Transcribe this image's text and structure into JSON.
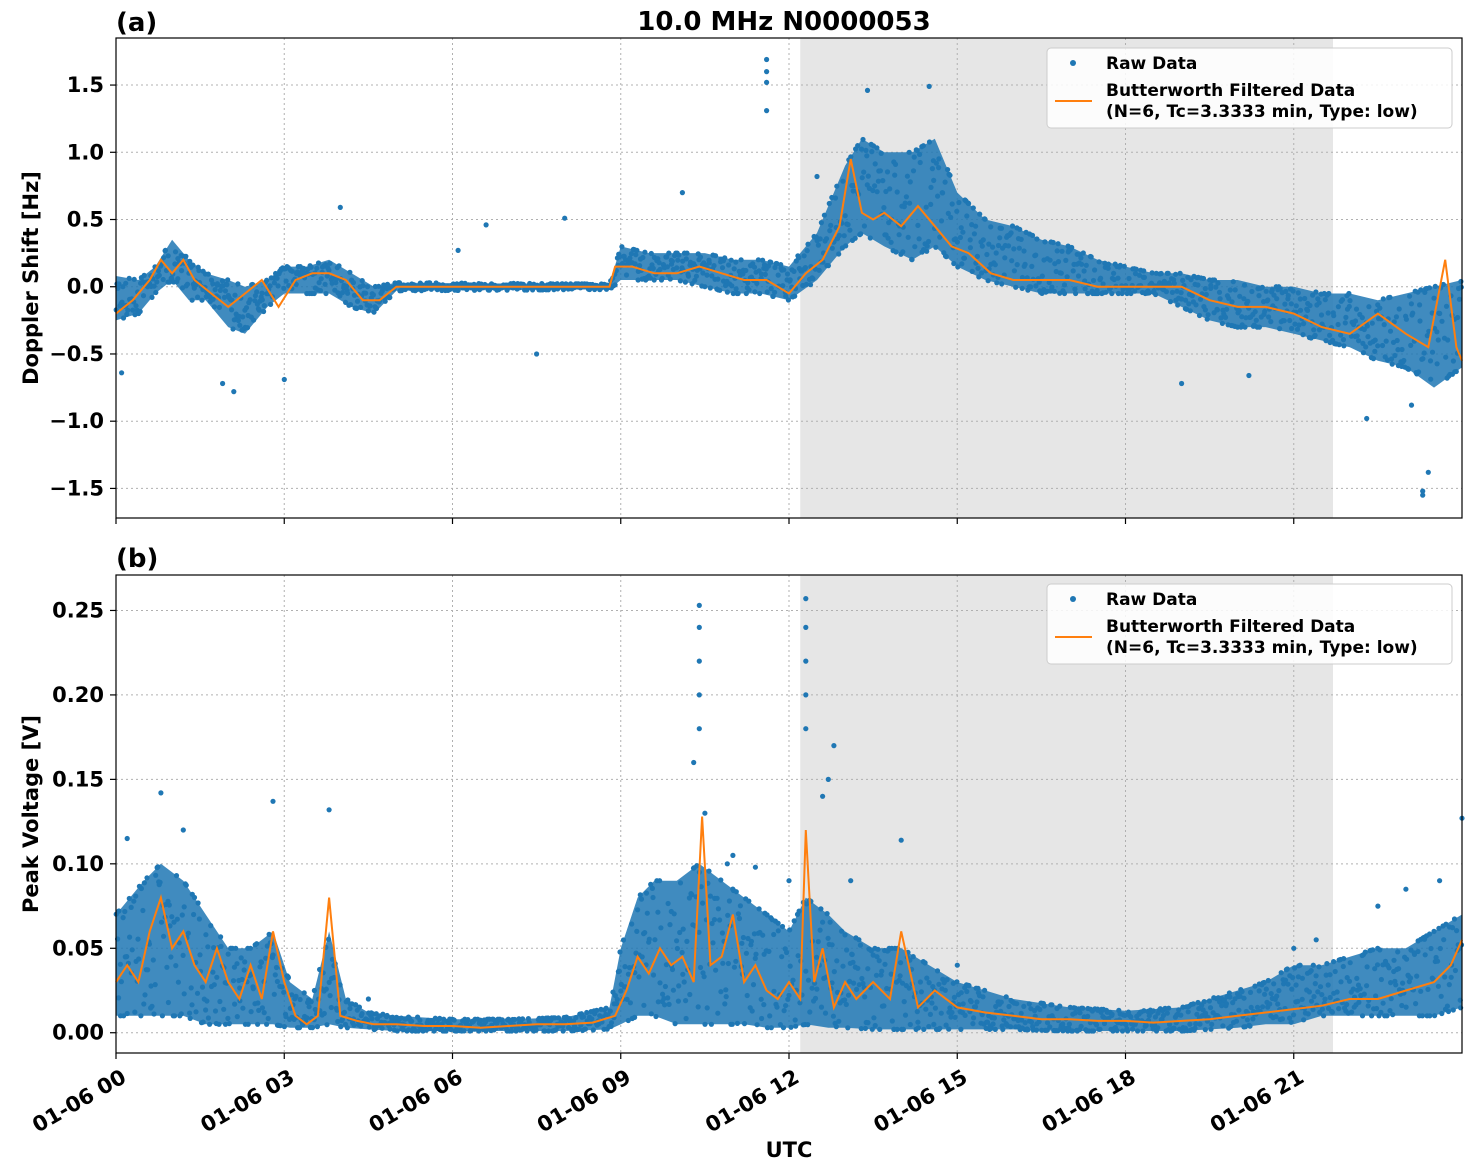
{
  "title": "10.0 MHz N0000053",
  "x_label": "UTC",
  "x_ticks": [
    "01-06 00",
    "01-06 03",
    "01-06 06",
    "01-06 09",
    "01-06 12",
    "01-06 15",
    "01-06 18",
    "01-06 21"
  ],
  "legend": {
    "raw": "Raw Data",
    "filtered_line1": "Butterworth Filtered Data",
    "filtered_line2": "(N=6, Tc=3.3333 min, Type: low)"
  },
  "colors": {
    "raw": "#1f77b4",
    "filtered": "#ff7f0e",
    "shade": "#e6e6e6",
    "grid": "#b0b0b0"
  },
  "chart_data": [
    {
      "type": "scatter",
      "panel_label": "(a)",
      "ylabel": "Doppler Shift [Hz]",
      "xlabel": "",
      "x_unit": "hours UTC on 01-06",
      "xlim": [
        0,
        24
      ],
      "ylim": [
        -1.72,
        1.85
      ],
      "y_ticks": [
        "1.5",
        "1.0",
        "0.5",
        "0.0",
        "−0.5",
        "−1.0",
        "−1.5"
      ],
      "grid": true,
      "legend_position": "top-right",
      "shaded_span": [
        12.2,
        21.7
      ],
      "series": [
        {
          "name": "Raw Data",
          "kind": "points",
          "band": [
            [
              0.0,
              -0.25,
              0.08
            ],
            [
              0.4,
              -0.2,
              0.05
            ],
            [
              0.7,
              -0.05,
              0.15
            ],
            [
              1.0,
              0.05,
              0.35
            ],
            [
              1.3,
              -0.1,
              0.2
            ],
            [
              1.6,
              -0.1,
              0.1
            ],
            [
              2.0,
              -0.3,
              0.05
            ],
            [
              2.3,
              -0.35,
              0.0
            ],
            [
              2.7,
              -0.15,
              0.05
            ],
            [
              3.0,
              -0.05,
              0.15
            ],
            [
              3.4,
              -0.05,
              0.15
            ],
            [
              3.8,
              -0.05,
              0.2
            ],
            [
              4.2,
              -0.15,
              0.1
            ],
            [
              4.6,
              -0.2,
              0.0
            ],
            [
              5.0,
              -0.03,
              0.03
            ],
            [
              8.8,
              -0.02,
              0.02
            ],
            [
              9.0,
              0.05,
              0.3
            ],
            [
              9.5,
              0.05,
              0.25
            ],
            [
              10.0,
              0.05,
              0.25
            ],
            [
              10.5,
              0.0,
              0.25
            ],
            [
              11.0,
              -0.05,
              0.2
            ],
            [
              11.5,
              -0.05,
              0.2
            ],
            [
              12.0,
              -0.1,
              0.15
            ],
            [
              12.5,
              0.05,
              0.4
            ],
            [
              13.0,
              0.3,
              0.9
            ],
            [
              13.3,
              0.4,
              1.1
            ],
            [
              13.7,
              0.3,
              1.0
            ],
            [
              14.2,
              0.2,
              1.0
            ],
            [
              14.6,
              0.3,
              1.1
            ],
            [
              15.0,
              0.15,
              0.7
            ],
            [
              15.5,
              0.05,
              0.5
            ],
            [
              16.0,
              0.0,
              0.45
            ],
            [
              16.5,
              -0.05,
              0.35
            ],
            [
              17.0,
              -0.05,
              0.3
            ],
            [
              17.5,
              -0.05,
              0.2
            ],
            [
              18.0,
              -0.05,
              0.15
            ],
            [
              18.5,
              -0.05,
              0.1
            ],
            [
              19.0,
              -0.15,
              0.1
            ],
            [
              19.5,
              -0.25,
              0.05
            ],
            [
              20.0,
              -0.3,
              0.05
            ],
            [
              20.5,
              -0.3,
              0.0
            ],
            [
              21.0,
              -0.35,
              0.0
            ],
            [
              21.5,
              -0.4,
              -0.05
            ],
            [
              22.0,
              -0.45,
              -0.05
            ],
            [
              22.5,
              -0.55,
              -0.1
            ],
            [
              23.0,
              -0.6,
              -0.05
            ],
            [
              23.5,
              -0.75,
              0.0
            ],
            [
              24.0,
              -0.6,
              0.05
            ]
          ],
          "outliers": [
            [
              11.6,
              1.69
            ],
            [
              11.6,
              1.6
            ],
            [
              11.6,
              1.52
            ],
            [
              11.6,
              1.31
            ],
            [
              13.4,
              1.46
            ],
            [
              14.5,
              1.49
            ],
            [
              4.0,
              0.59
            ],
            [
              10.1,
              0.7
            ],
            [
              8.0,
              0.51
            ],
            [
              6.6,
              0.46
            ],
            [
              6.1,
              0.27
            ],
            [
              2.1,
              -0.78
            ],
            [
              1.9,
              -0.72
            ],
            [
              0.1,
              -0.64
            ],
            [
              3.0,
              -0.69
            ],
            [
              7.5,
              -0.5
            ],
            [
              12.5,
              0.82
            ],
            [
              23.4,
              -1.38
            ],
            [
              23.3,
              -1.55
            ],
            [
              23.3,
              -1.52
            ],
            [
              19.0,
              -0.72
            ],
            [
              20.2,
              -0.66
            ],
            [
              22.3,
              -0.98
            ],
            [
              23.1,
              -0.88
            ]
          ]
        },
        {
          "name": "Butterworth Filtered Data (N=6, Tc=3.3333 min, Type: low)",
          "kind": "line",
          "x": [
            0,
            0.3,
            0.6,
            0.8,
            1.0,
            1.2,
            1.4,
            1.7,
            2.0,
            2.3,
            2.6,
            2.9,
            3.2,
            3.5,
            3.8,
            4.1,
            4.4,
            4.7,
            5.0,
            5.5,
            6.0,
            7.0,
            8.0,
            8.8,
            8.9,
            9.2,
            9.6,
            10.0,
            10.4,
            10.8,
            11.2,
            11.6,
            12.0,
            12.3,
            12.6,
            12.9,
            13.1,
            13.3,
            13.5,
            13.7,
            14.0,
            14.3,
            14.6,
            14.9,
            15.2,
            15.6,
            16.0,
            16.5,
            17.0,
            17.5,
            18.0,
            18.5,
            19.0,
            19.5,
            20.0,
            20.5,
            21.0,
            21.5,
            22.0,
            22.5,
            23.0,
            23.4,
            23.7,
            23.9,
            24.0
          ],
          "y": [
            -0.2,
            -0.1,
            0.05,
            0.2,
            0.1,
            0.2,
            0.05,
            -0.05,
            -0.15,
            -0.05,
            0.05,
            -0.15,
            0.05,
            0.1,
            0.1,
            0.05,
            -0.1,
            -0.1,
            0.0,
            0.0,
            0.0,
            0.0,
            0.0,
            0.0,
            0.15,
            0.15,
            0.1,
            0.1,
            0.15,
            0.1,
            0.05,
            0.05,
            -0.05,
            0.1,
            0.2,
            0.45,
            0.95,
            0.55,
            0.5,
            0.55,
            0.45,
            0.6,
            0.45,
            0.3,
            0.25,
            0.1,
            0.05,
            0.05,
            0.05,
            0.0,
            0.0,
            0.0,
            0.0,
            -0.1,
            -0.15,
            -0.15,
            -0.2,
            -0.3,
            -0.35,
            -0.2,
            -0.35,
            -0.45,
            0.2,
            -0.45,
            -0.55
          ]
        }
      ]
    },
    {
      "type": "scatter",
      "panel_label": "(b)",
      "ylabel": "Peak Voltage [V]",
      "xlabel": "UTC",
      "x_unit": "hours UTC on 01-06",
      "xlim": [
        0,
        24
      ],
      "ylim": [
        -0.012,
        0.271
      ],
      "y_ticks": [
        "0.25",
        "0.20",
        "0.15",
        "0.10",
        "0.05",
        "0.00"
      ],
      "grid": true,
      "legend_position": "top-right",
      "shaded_span": [
        12.2,
        21.7
      ],
      "series": [
        {
          "name": "Raw Data",
          "kind": "points",
          "band": [
            [
              0.0,
              0.01,
              0.07
            ],
            [
              0.5,
              0.01,
              0.09
            ],
            [
              0.8,
              0.01,
              0.1
            ],
            [
              1.2,
              0.01,
              0.09
            ],
            [
              1.6,
              0.005,
              0.07
            ],
            [
              2.0,
              0.005,
              0.05
            ],
            [
              2.4,
              0.005,
              0.05
            ],
            [
              2.8,
              0.005,
              0.06
            ],
            [
              3.1,
              0.003,
              0.03
            ],
            [
              3.5,
              0.003,
              0.02
            ],
            [
              3.8,
              0.005,
              0.06
            ],
            [
              4.1,
              0.003,
              0.02
            ],
            [
              4.5,
              0.002,
              0.012
            ],
            [
              5.0,
              0.001,
              0.01
            ],
            [
              6.0,
              0.001,
              0.008
            ],
            [
              7.0,
              0.001,
              0.008
            ],
            [
              8.0,
              0.001,
              0.009
            ],
            [
              8.8,
              0.002,
              0.015
            ],
            [
              9.0,
              0.005,
              0.05
            ],
            [
              9.3,
              0.01,
              0.08
            ],
            [
              9.6,
              0.01,
              0.09
            ],
            [
              10.0,
              0.005,
              0.09
            ],
            [
              10.4,
              0.005,
              0.1
            ],
            [
              10.8,
              0.005,
              0.09
            ],
            [
              11.2,
              0.005,
              0.08
            ],
            [
              11.6,
              0.003,
              0.07
            ],
            [
              12.0,
              0.003,
              0.06
            ],
            [
              12.3,
              0.005,
              0.08
            ],
            [
              12.7,
              0.003,
              0.07
            ],
            [
              13.0,
              0.003,
              0.06
            ],
            [
              13.5,
              0.002,
              0.05
            ],
            [
              14.0,
              0.002,
              0.05
            ],
            [
              14.5,
              0.002,
              0.04
            ],
            [
              15.0,
              0.002,
              0.03
            ],
            [
              15.5,
              0.002,
              0.025
            ],
            [
              16.0,
              0.002,
              0.02
            ],
            [
              17.0,
              0.001,
              0.015
            ],
            [
              18.0,
              0.001,
              0.013
            ],
            [
              19.0,
              0.001,
              0.015
            ],
            [
              19.5,
              0.002,
              0.02
            ],
            [
              20.0,
              0.003,
              0.025
            ],
            [
              20.5,
              0.005,
              0.03
            ],
            [
              21.0,
              0.005,
              0.04
            ],
            [
              21.5,
              0.01,
              0.04
            ],
            [
              22.0,
              0.01,
              0.045
            ],
            [
              22.5,
              0.01,
              0.05
            ],
            [
              23.0,
              0.01,
              0.05
            ],
            [
              23.5,
              0.01,
              0.06
            ],
            [
              24.0,
              0.015,
              0.07
            ]
          ],
          "outliers": [
            [
              10.4,
              0.253
            ],
            [
              10.4,
              0.24
            ],
            [
              10.4,
              0.22
            ],
            [
              10.4,
              0.2
            ],
            [
              10.4,
              0.18
            ],
            [
              10.3,
              0.16
            ],
            [
              12.3,
              0.257
            ],
            [
              12.3,
              0.24
            ],
            [
              12.3,
              0.22
            ],
            [
              12.3,
              0.2
            ],
            [
              12.3,
              0.18
            ],
            [
              12.8,
              0.17
            ],
            [
              12.7,
              0.15
            ],
            [
              12.6,
              0.14
            ],
            [
              0.8,
              0.142
            ],
            [
              3.8,
              0.132
            ],
            [
              2.8,
              0.137
            ],
            [
              14.0,
              0.114
            ],
            [
              11.0,
              0.105
            ],
            [
              11.4,
              0.098
            ],
            [
              12.0,
              0.09
            ],
            [
              10.9,
              0.1
            ],
            [
              10.5,
              0.13
            ],
            [
              13.1,
              0.09
            ],
            [
              1.2,
              0.12
            ],
            [
              0.2,
              0.115
            ],
            [
              23.6,
              0.09
            ],
            [
              24.0,
              0.127
            ],
            [
              23.0,
              0.085
            ],
            [
              22.5,
              0.075
            ],
            [
              21.0,
              0.05
            ],
            [
              21.4,
              0.055
            ],
            [
              15.0,
              0.04
            ],
            [
              4.5,
              0.02
            ]
          ]
        },
        {
          "name": "Butterworth Filtered Data (N=6, Tc=3.3333 min, Type: low)",
          "kind": "line",
          "x": [
            0,
            0.2,
            0.4,
            0.6,
            0.8,
            1.0,
            1.2,
            1.4,
            1.6,
            1.8,
            2.0,
            2.2,
            2.4,
            2.6,
            2.8,
            3.0,
            3.2,
            3.4,
            3.6,
            3.8,
            4.0,
            4.3,
            4.6,
            5.0,
            5.5,
            6.0,
            6.5,
            7.0,
            7.5,
            8.0,
            8.5,
            8.9,
            9.1,
            9.3,
            9.5,
            9.7,
            9.9,
            10.1,
            10.3,
            10.45,
            10.6,
            10.8,
            11.0,
            11.2,
            11.4,
            11.6,
            11.8,
            12.0,
            12.2,
            12.3,
            12.45,
            12.6,
            12.8,
            13.0,
            13.2,
            13.5,
            13.8,
            14.0,
            14.3,
            14.6,
            15.0,
            15.5,
            16.0,
            16.5,
            17.0,
            17.5,
            18.0,
            18.5,
            19.0,
            19.5,
            20.0,
            20.5,
            21.0,
            21.5,
            22.0,
            22.5,
            23.0,
            23.5,
            23.8,
            24.0
          ],
          "y": [
            0.03,
            0.04,
            0.03,
            0.06,
            0.08,
            0.05,
            0.06,
            0.04,
            0.03,
            0.05,
            0.03,
            0.02,
            0.04,
            0.02,
            0.06,
            0.03,
            0.01,
            0.005,
            0.01,
            0.08,
            0.01,
            0.007,
            0.005,
            0.005,
            0.004,
            0.004,
            0.003,
            0.004,
            0.005,
            0.005,
            0.006,
            0.01,
            0.025,
            0.045,
            0.035,
            0.05,
            0.04,
            0.045,
            0.03,
            0.128,
            0.04,
            0.045,
            0.07,
            0.03,
            0.04,
            0.025,
            0.02,
            0.03,
            0.02,
            0.12,
            0.03,
            0.05,
            0.015,
            0.03,
            0.02,
            0.03,
            0.02,
            0.06,
            0.015,
            0.025,
            0.015,
            0.012,
            0.01,
            0.008,
            0.008,
            0.007,
            0.007,
            0.006,
            0.007,
            0.008,
            0.01,
            0.012,
            0.014,
            0.016,
            0.02,
            0.02,
            0.025,
            0.03,
            0.04,
            0.055
          ]
        }
      ]
    }
  ]
}
